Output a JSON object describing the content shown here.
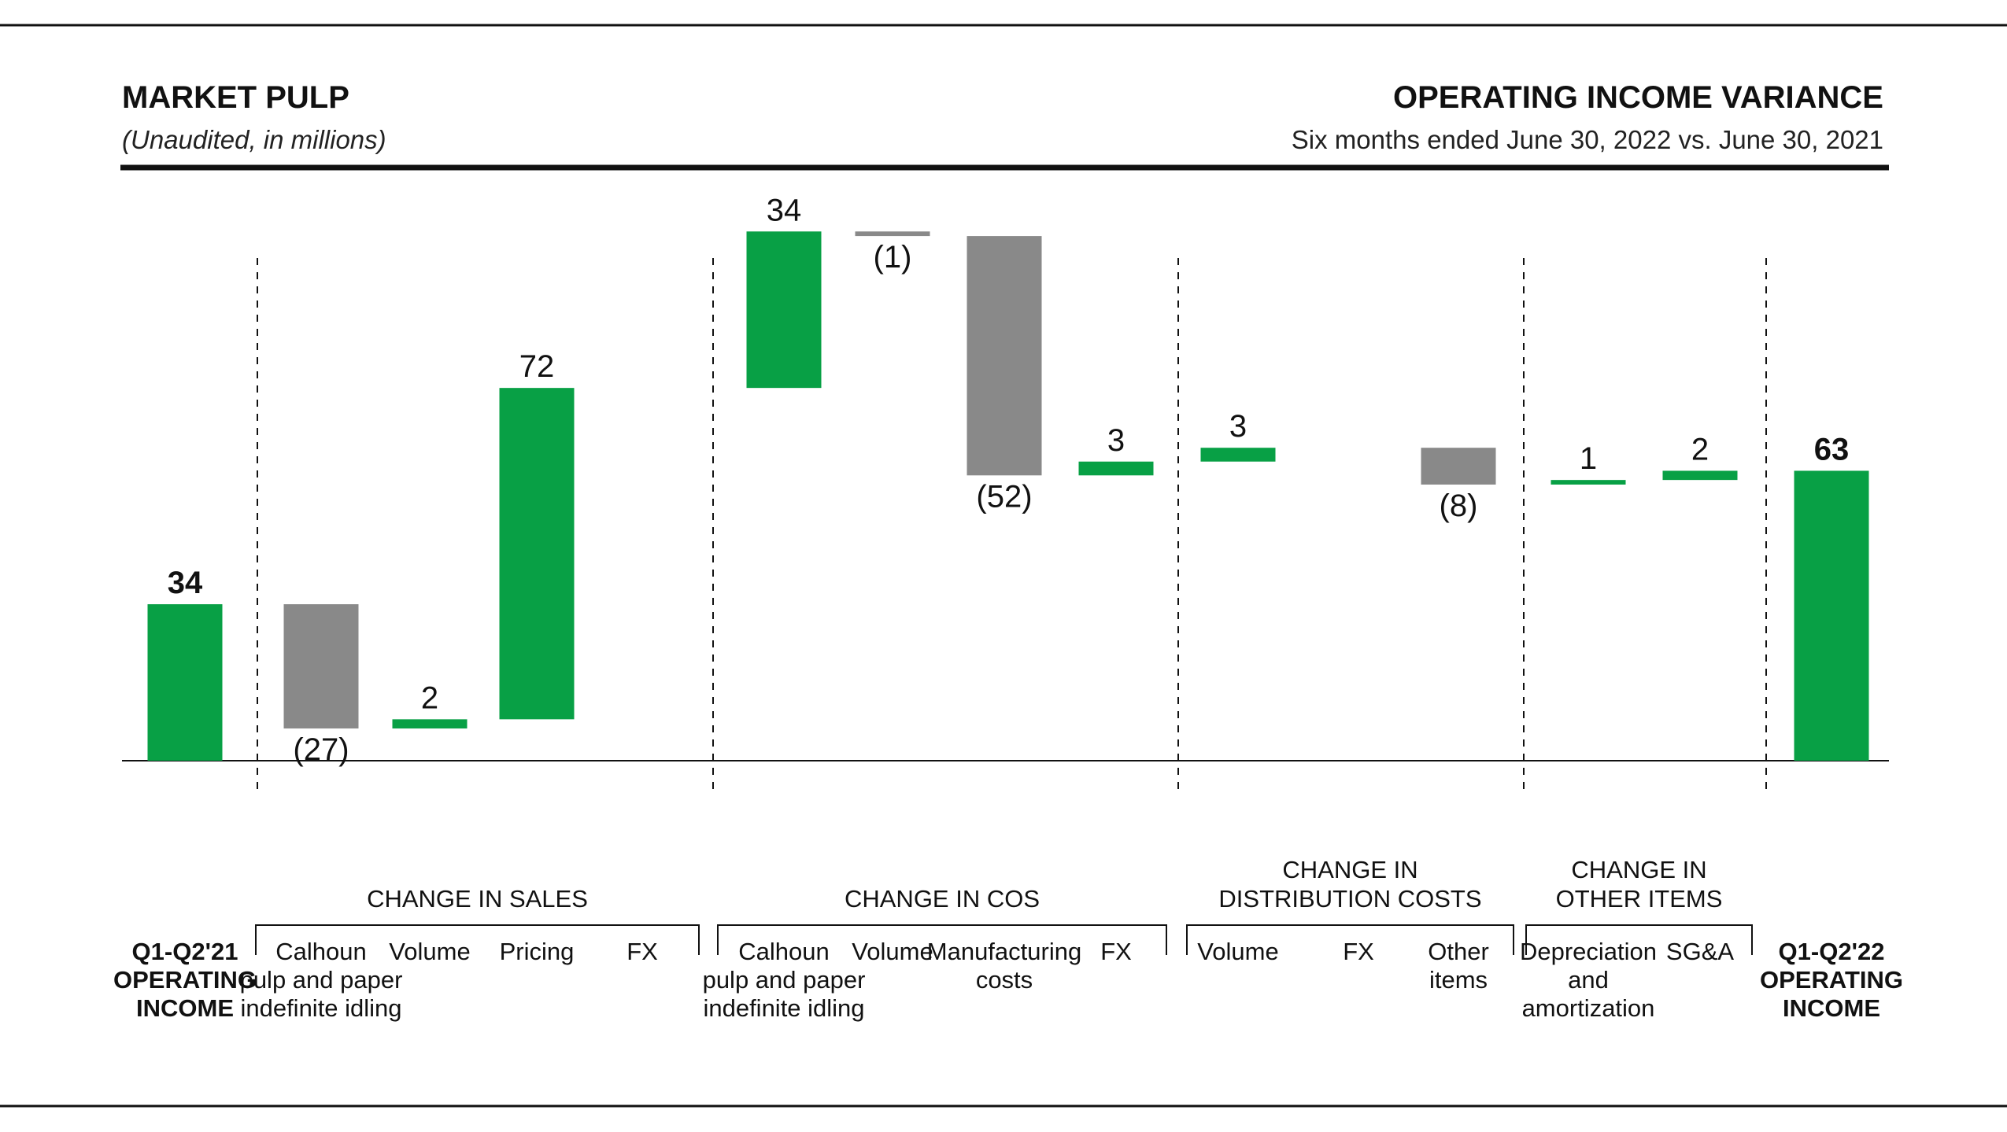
{
  "header": {
    "title": "MARKET PULP",
    "subtitle": "(Unaudited, in millions)",
    "right_title": "OPERATING INCOME VARIANCE",
    "right_subtitle": "Six months ended June 30, 2022 vs. June 30, 2021"
  },
  "colors": {
    "increase": "#08a045",
    "decrease": "#898989",
    "total": "#08a045",
    "text": "#111111"
  },
  "groups": [
    {
      "name": "CHANGE IN SALES",
      "lines": [
        "CHANGE IN SALES"
      ]
    },
    {
      "name": "CHANGE IN COS",
      "lines": [
        "CHANGE IN COS"
      ]
    },
    {
      "name": "CHANGE IN DISTRIBUTION COSTS",
      "lines": [
        "CHANGE IN",
        "DISTRIBUTION COSTS"
      ]
    },
    {
      "name": "CHANGE IN OTHER ITEMS",
      "lines": [
        "CHANGE IN",
        "OTHER ITEMS"
      ]
    }
  ],
  "chart_data": {
    "type": "waterfall",
    "title": "OPERATING INCOME VARIANCE",
    "subtitle": "Six months ended June 30, 2022 vs. June 30, 2021",
    "unit": "in millions",
    "bars": [
      {
        "category": "Q1-Q2'21 OPERATING INCOME",
        "lines": [
          "Q1-Q2'21",
          "OPERATING",
          "INCOME"
        ],
        "value": 34,
        "label": "34",
        "kind": "total",
        "group": null
      },
      {
        "category": "Calhoun pulp and paper indefinite idling",
        "lines": [
          "Calhoun",
          "pulp and paper",
          "indefinite idling"
        ],
        "value": -27,
        "label": "(27)",
        "kind": "delta",
        "group": "CHANGE IN SALES"
      },
      {
        "category": "Volume",
        "lines": [
          "Volume"
        ],
        "value": 2,
        "label": "2",
        "kind": "delta",
        "group": "CHANGE IN SALES"
      },
      {
        "category": "Pricing",
        "lines": [
          "Pricing"
        ],
        "value": 72,
        "label": "72",
        "kind": "delta",
        "group": "CHANGE IN SALES"
      },
      {
        "category": "FX",
        "lines": [
          "FX"
        ],
        "value": 0,
        "label": "",
        "kind": "delta",
        "group": "CHANGE IN SALES"
      },
      {
        "category": "Calhoun pulp and paper indefinite idling",
        "lines": [
          "Calhoun",
          "pulp and paper",
          "indefinite idling"
        ],
        "value": 34,
        "label": "34",
        "kind": "delta",
        "group": "CHANGE IN COS"
      },
      {
        "category": "Volume",
        "lines": [
          "Volume"
        ],
        "value": -1,
        "label": "(1)",
        "kind": "delta",
        "group": "CHANGE IN COS"
      },
      {
        "category": "Manufacturing costs",
        "lines": [
          "Manufacturing",
          "costs"
        ],
        "value": -52,
        "label": "(52)",
        "kind": "delta",
        "group": "CHANGE IN COS"
      },
      {
        "category": "FX",
        "lines": [
          "FX"
        ],
        "value": 3,
        "label": "3",
        "kind": "delta",
        "group": "CHANGE IN COS"
      },
      {
        "category": "Volume",
        "lines": [
          "Volume"
        ],
        "value": 3,
        "label": "3",
        "kind": "delta",
        "group": "CHANGE IN DISTRIBUTION COSTS"
      },
      {
        "category": "FX",
        "lines": [
          "FX"
        ],
        "value": 0,
        "label": "",
        "kind": "delta",
        "group": "CHANGE IN DISTRIBUTION COSTS"
      },
      {
        "category": "Other items",
        "lines": [
          "Other",
          "items"
        ],
        "value": -8,
        "label": "(8)",
        "kind": "delta",
        "group": "CHANGE IN DISTRIBUTION COSTS"
      },
      {
        "category": "Depreciation and amortization",
        "lines": [
          "Depreciation",
          "and",
          "amortization"
        ],
        "value": 1,
        "label": "1",
        "kind": "delta",
        "group": "CHANGE IN OTHER ITEMS"
      },
      {
        "category": "SG&A",
        "lines": [
          "SG&A"
        ],
        "value": 2,
        "label": "2",
        "kind": "delta",
        "group": "CHANGE IN OTHER ITEMS"
      },
      {
        "category": "Q1-Q2'22 OPERATING INCOME",
        "lines": [
          "Q1-Q2'22",
          "OPERATING",
          "INCOME"
        ],
        "value": 63,
        "label": "63",
        "kind": "total",
        "group": null
      }
    ],
    "ylim": [
      0,
      132
    ],
    "grid": false,
    "legend": "none"
  }
}
